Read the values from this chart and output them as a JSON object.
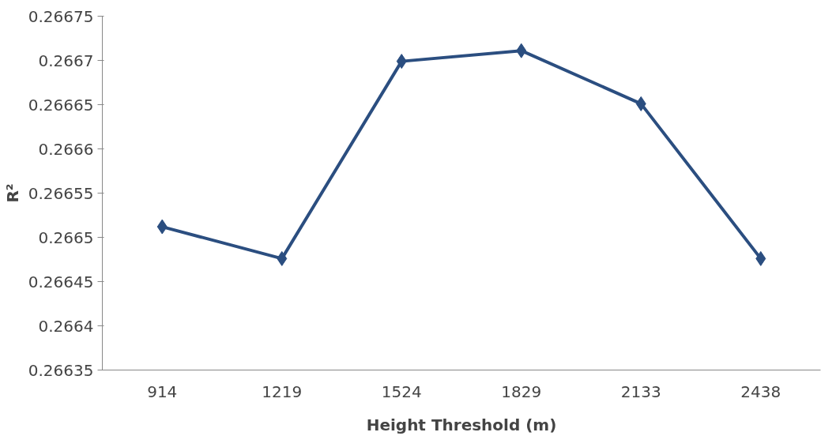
{
  "chart_data": {
    "type": "line",
    "xlabel": "Height Threshold (m)",
    "ylabel": "R²",
    "categories": [
      "914",
      "1219",
      "1524",
      "1829",
      "2133",
      "2438"
    ],
    "series": [
      {
        "color": "#2b4e80",
        "values": [
          0.266512,
          0.266476,
          0.266699,
          0.266711,
          0.266651,
          0.266476
        ]
      }
    ],
    "ylim": [
      0.26635,
      0.26675
    ],
    "yticks": [
      0.26635,
      0.2664,
      0.26645,
      0.2665,
      0.26655,
      0.2666,
      0.26665,
      0.2667,
      0.26675
    ],
    "marker": "diamond",
    "line_style": "solid",
    "grid": false
  }
}
